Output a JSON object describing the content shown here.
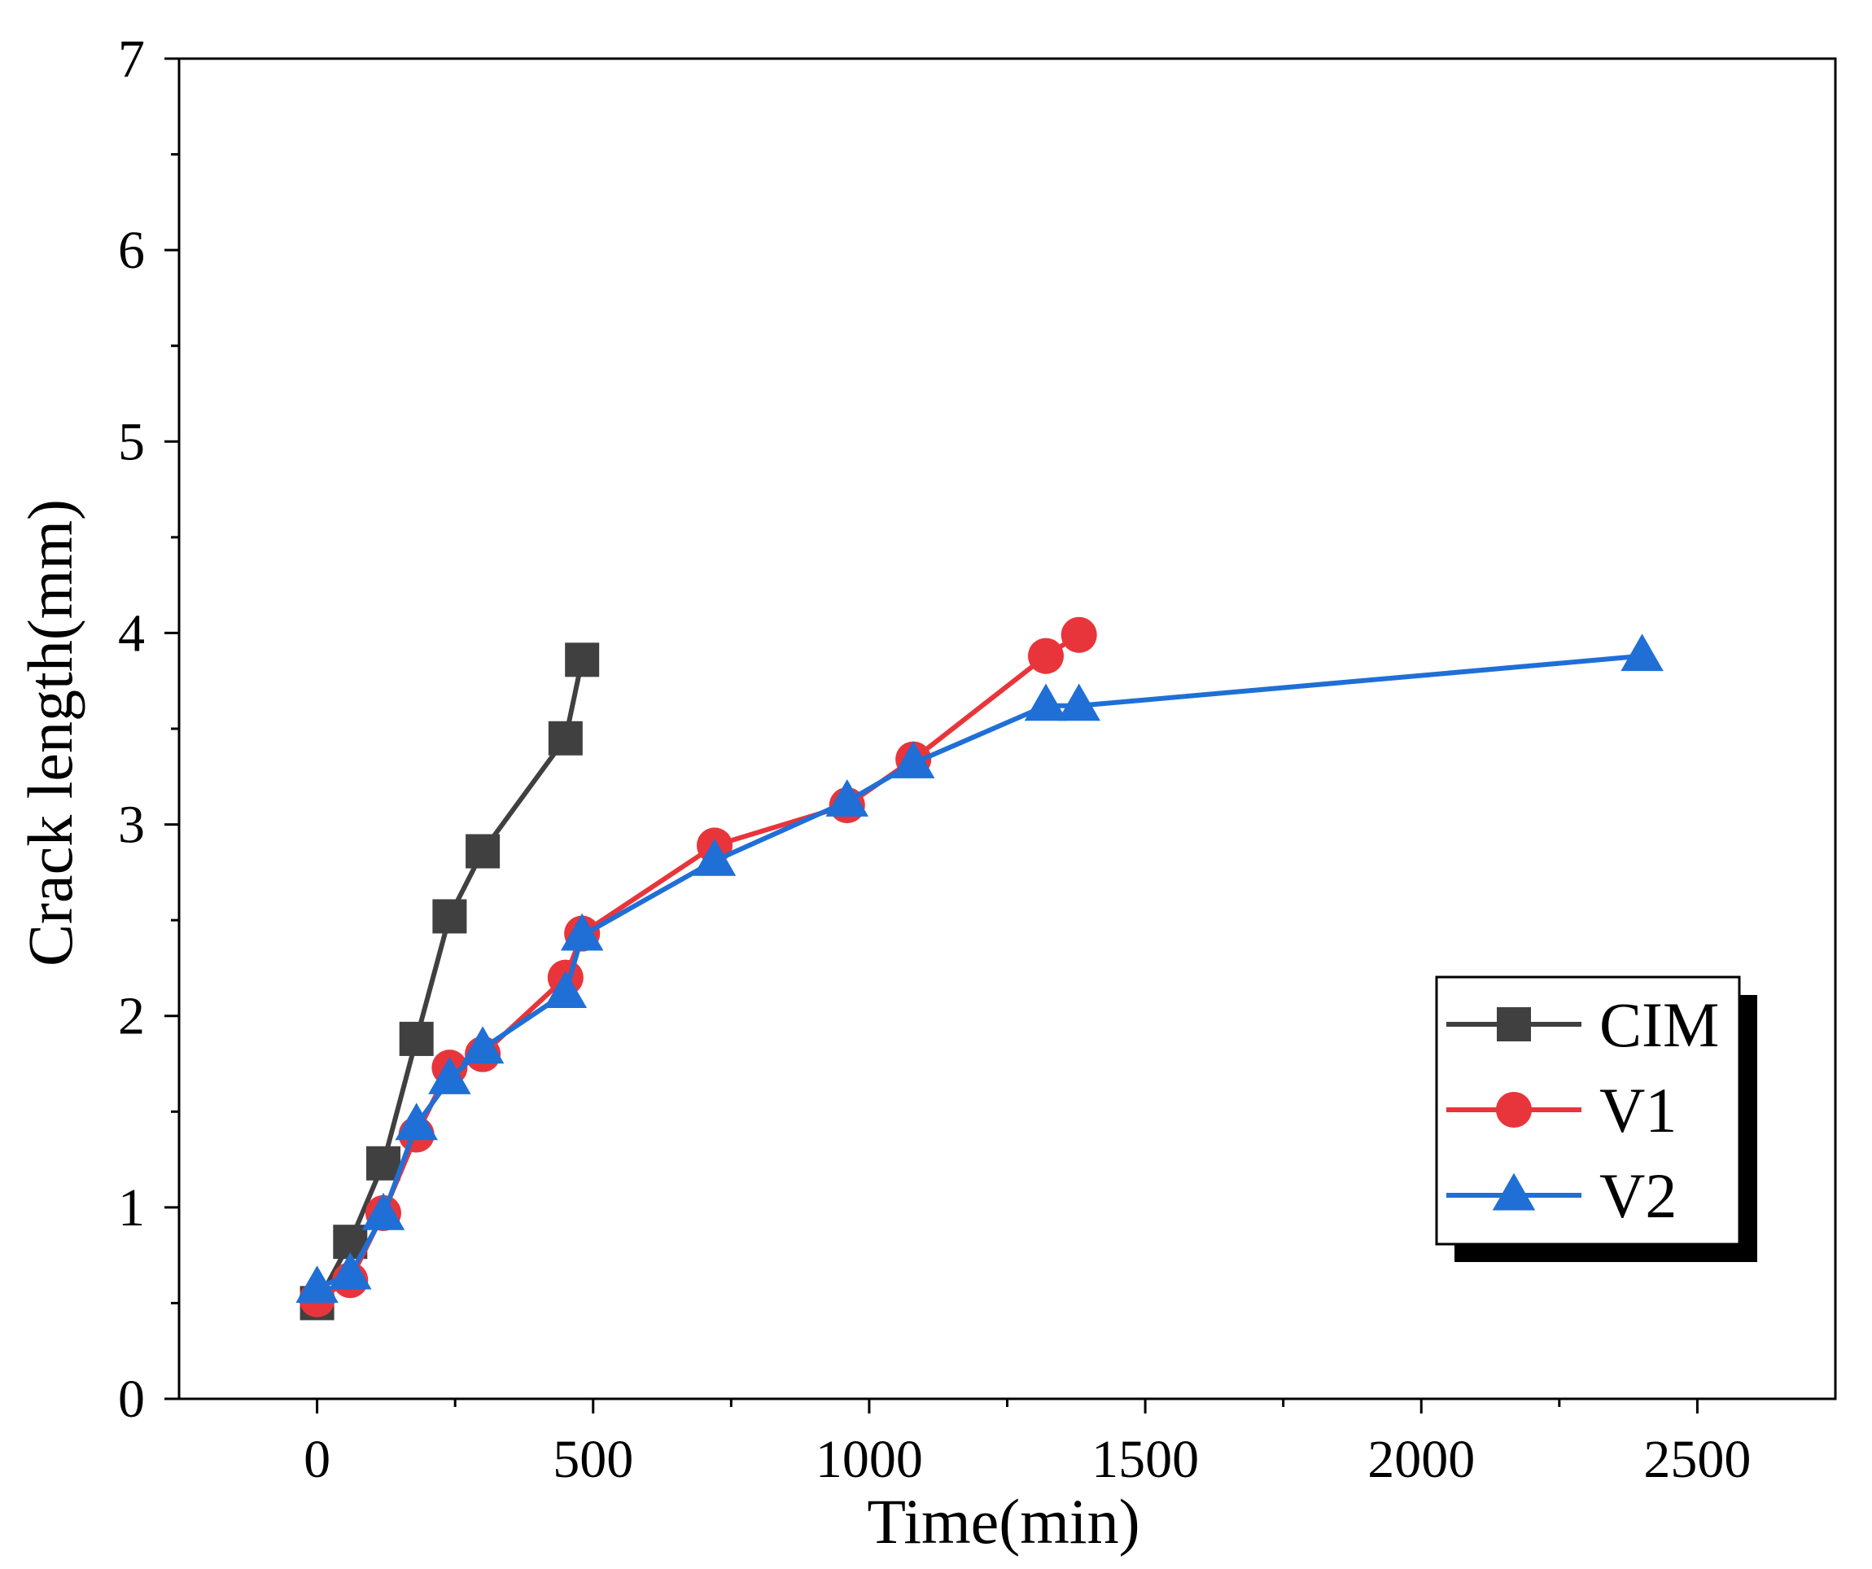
{
  "chart_data": {
    "type": "line",
    "title": "",
    "xlabel": "Time(min)",
    "ylabel": "Crack length(mm)",
    "xlim": [
      -250,
      2750
    ],
    "ylim": [
      0,
      7
    ],
    "xticks": [
      0,
      500,
      1000,
      1500,
      2000,
      2500
    ],
    "yticks": [
      0,
      1,
      2,
      3,
      4,
      5,
      6,
      7
    ],
    "grid": false,
    "legend_position": "bottom-right",
    "series": [
      {
        "name": "CIM",
        "color": "#404040",
        "marker": "square",
        "points": [
          [
            0,
            0.5
          ],
          [
            60,
            0.82
          ],
          [
            120,
            1.23
          ],
          [
            180,
            1.88
          ],
          [
            240,
            2.52
          ],
          [
            300,
            2.86
          ],
          [
            450,
            3.45
          ],
          [
            480,
            3.86
          ]
        ]
      },
      {
        "name": "V1",
        "color": "#e8353b",
        "marker": "circle",
        "points": [
          [
            0,
            0.52
          ],
          [
            60,
            0.62
          ],
          [
            120,
            0.97
          ],
          [
            180,
            1.38
          ],
          [
            240,
            1.73
          ],
          [
            300,
            1.8
          ],
          [
            450,
            2.2
          ],
          [
            480,
            2.43
          ],
          [
            720,
            2.89
          ],
          [
            960,
            3.1
          ],
          [
            1080,
            3.34
          ],
          [
            1320,
            3.88
          ],
          [
            1380,
            3.99
          ]
        ]
      },
      {
        "name": "V2",
        "color": "#1f6fd6",
        "marker": "triangle",
        "points": [
          [
            0,
            0.58
          ],
          [
            60,
            0.65
          ],
          [
            120,
            0.96
          ],
          [
            180,
            1.43
          ],
          [
            240,
            1.67
          ],
          [
            300,
            1.83
          ],
          [
            450,
            2.12
          ],
          [
            480,
            2.42
          ],
          [
            720,
            2.81
          ],
          [
            960,
            3.12
          ],
          [
            1080,
            3.32
          ],
          [
            1320,
            3.62
          ],
          [
            1380,
            3.62
          ],
          [
            2400,
            3.88
          ]
        ]
      }
    ]
  }
}
